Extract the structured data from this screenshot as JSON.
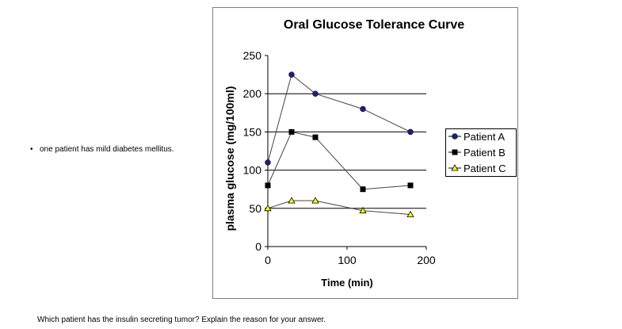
{
  "bullet_text": "one patient has mild diabetes mellitus.",
  "question_text": "Which patient has the insulin secreting tumor?  Explain the reason for your answer.",
  "chart_data": {
    "type": "line",
    "title": "Oral Glucose Tolerance Curve",
    "xlabel": "Time (min)",
    "ylabel": "plasma glucose (mg/100ml)",
    "xlim": [
      0,
      200
    ],
    "ylim": [
      0,
      250
    ],
    "xticks": [
      0,
      100,
      200
    ],
    "yticks": [
      0,
      50,
      100,
      150,
      200,
      250
    ],
    "grid": "horizontal",
    "legend_position": "right",
    "x": [
      0,
      30,
      60,
      120,
      180
    ],
    "series": [
      {
        "name": "Patient A",
        "values": [
          110,
          225,
          200,
          180,
          150
        ],
        "marker": "circle",
        "color": "#1f1f7a"
      },
      {
        "name": "Patient B",
        "values": [
          80,
          150,
          143,
          75,
          80
        ],
        "marker": "square",
        "color": "#000000"
      },
      {
        "name": "Patient C",
        "values": [
          50,
          60,
          60,
          47,
          42
        ],
        "marker": "triangle",
        "color": "#ffff00"
      }
    ]
  }
}
